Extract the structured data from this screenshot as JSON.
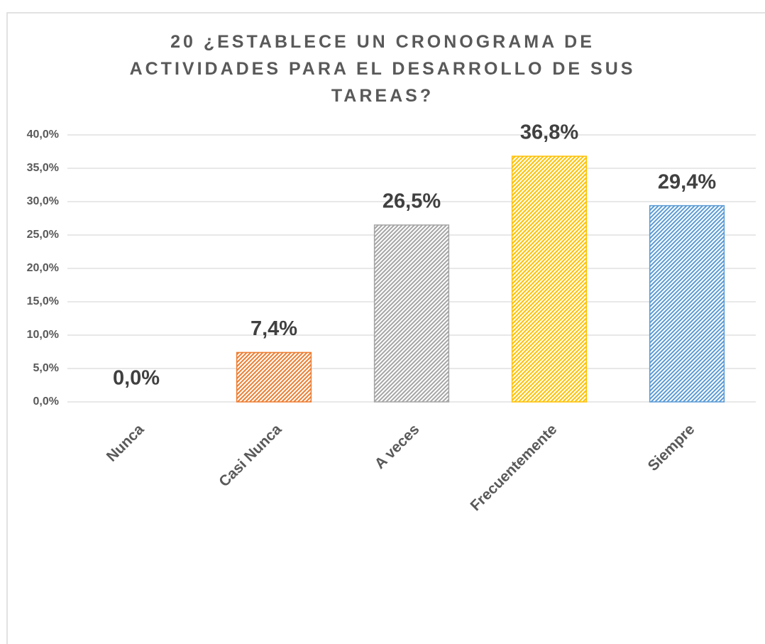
{
  "chart_data": {
    "type": "bar",
    "title": "20 ¿ESTABLECE UN CRONOGRAMA DE ACTIVIDADES PARA EL DESARROLLO DE SUS TAREAS?",
    "categories": [
      "Nunca",
      "Casi Nunca",
      "A veces",
      "Frecuentemente",
      "Siempre"
    ],
    "values": [
      0,
      7.4,
      26.5,
      36.8,
      29.4
    ],
    "value_labels": [
      "0,0%",
      "7,4%",
      "26,5%",
      "36,8%",
      "29,4%"
    ],
    "colors": [
      "#4472c4",
      "#ed7d31",
      "#a5a5a5",
      "#ffc000",
      "#5b9bd5"
    ],
    "ylim": [
      0,
      40
    ],
    "yticks": [
      {
        "value": 0,
        "label": "0,0%"
      },
      {
        "value": 5,
        "label": "5,0%"
      },
      {
        "value": 10,
        "label": "10,0%"
      },
      {
        "value": 15,
        "label": "15,0%"
      },
      {
        "value": 20,
        "label": "20,0%"
      },
      {
        "value": 25,
        "label": "25,0%"
      },
      {
        "value": 30,
        "label": "30,0%"
      },
      {
        "value": 35,
        "label": "35,0%"
      },
      {
        "value": 40,
        "label": "40,0%"
      }
    ],
    "grid": true
  }
}
